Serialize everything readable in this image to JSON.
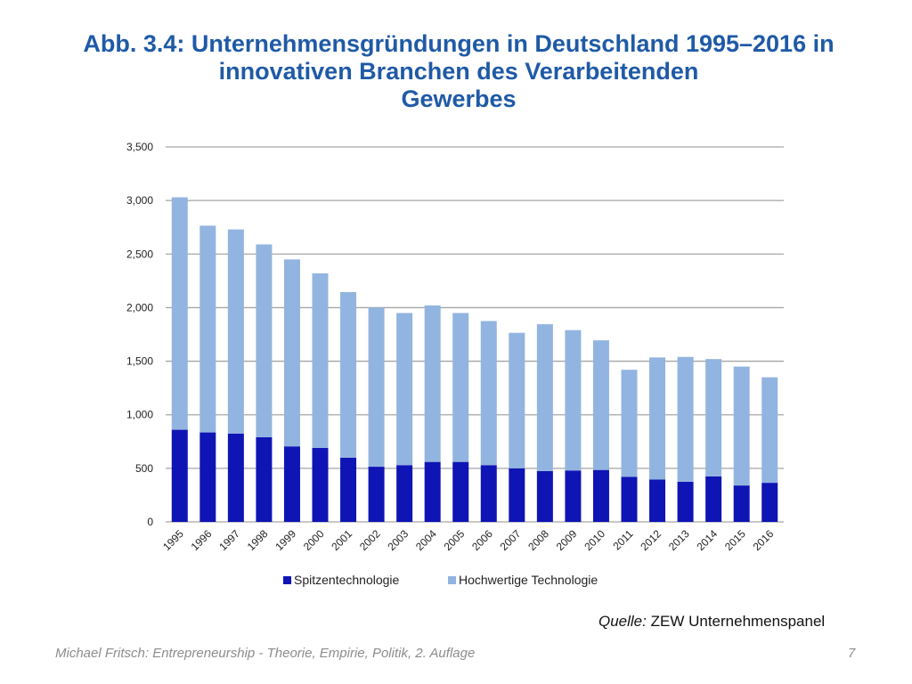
{
  "slide": {
    "title_lines": [
      "Abb. 3.4: Unternehmensgründungen in Deutschland 1995–2016 in",
      "innovativen Branchen des Verarbeitenden",
      "Gewerbes"
    ],
    "source_label": "Quelle:",
    "source_text": " ZEW Unternehmenspanel",
    "footer": "Michael Fritsch: Entrepreneurship - Theorie, Empirie, Politik, 2. Auflage",
    "page_number": "7"
  },
  "colors": {
    "title": "#1f5aa6",
    "spitzen": "#0f14b4",
    "hochwertig": "#92b4e0",
    "grid": "#a6a6a6"
  },
  "chart_data": {
    "type": "bar",
    "stacked": true,
    "title": "",
    "xlabel": "",
    "ylabel": "",
    "ylim": [
      0,
      3500
    ],
    "yticks": [
      0,
      500,
      1000,
      1500,
      2000,
      2500,
      3000,
      3500
    ],
    "ytick_labels": [
      "0",
      "500",
      "1,000",
      "1,500",
      "2,000",
      "2,500",
      "3,000",
      "3,500"
    ],
    "grid": true,
    "legend_position": "bottom",
    "categories": [
      "1995",
      "1996",
      "1997",
      "1998",
      "1999",
      "2000",
      "2001",
      "2002",
      "2003",
      "2004",
      "2005",
      "2006",
      "2007",
      "2008",
      "2009",
      "2010",
      "2011",
      "2012",
      "2013",
      "2014",
      "2015",
      "2016"
    ],
    "series": [
      {
        "name": "Spitzentechnologie",
        "values": [
          860,
          835,
          825,
          790,
          705,
          690,
          600,
          515,
          530,
          560,
          560,
          530,
          500,
          475,
          480,
          485,
          420,
          395,
          375,
          425,
          340,
          365
        ]
      },
      {
        "name": "Hochwertige Technologie",
        "values": [
          2170,
          1930,
          1905,
          1800,
          1745,
          1630,
          1545,
          1485,
          1420,
          1460,
          1390,
          1345,
          1265,
          1370,
          1310,
          1210,
          1000,
          1140,
          1165,
          1095,
          1110,
          985
        ]
      }
    ]
  }
}
